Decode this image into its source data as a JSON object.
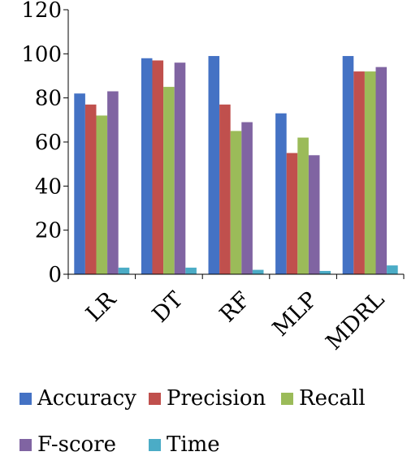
{
  "chart_data": {
    "type": "bar",
    "title": "",
    "xlabel": "",
    "ylabel": "",
    "categories": [
      "LR",
      "DT",
      "RF",
      "MLP",
      "MDRL"
    ],
    "ylim": [
      0,
      120
    ],
    "yticks": [
      "0",
      "20",
      "40",
      "60",
      "80",
      "100",
      "120"
    ],
    "grid": false,
    "legend_position": "bottom",
    "series": [
      {
        "name": "Accuracy",
        "color": "#4472C4",
        "values": [
          82,
          98,
          99,
          73,
          99
        ]
      },
      {
        "name": "Precision",
        "color": "#C0504D",
        "values": [
          77,
          97,
          77,
          55,
          92
        ]
      },
      {
        "name": "Recall",
        "color": "#9BBB59",
        "values": [
          72,
          85,
          65,
          62,
          92
        ]
      },
      {
        "name": "F-score",
        "color": "#8064A2",
        "values": [
          83,
          96,
          69,
          54,
          94
        ]
      },
      {
        "name": "Time",
        "color": "#4BACC6",
        "values": [
          3,
          3,
          2,
          1.5,
          4
        ]
      }
    ]
  }
}
